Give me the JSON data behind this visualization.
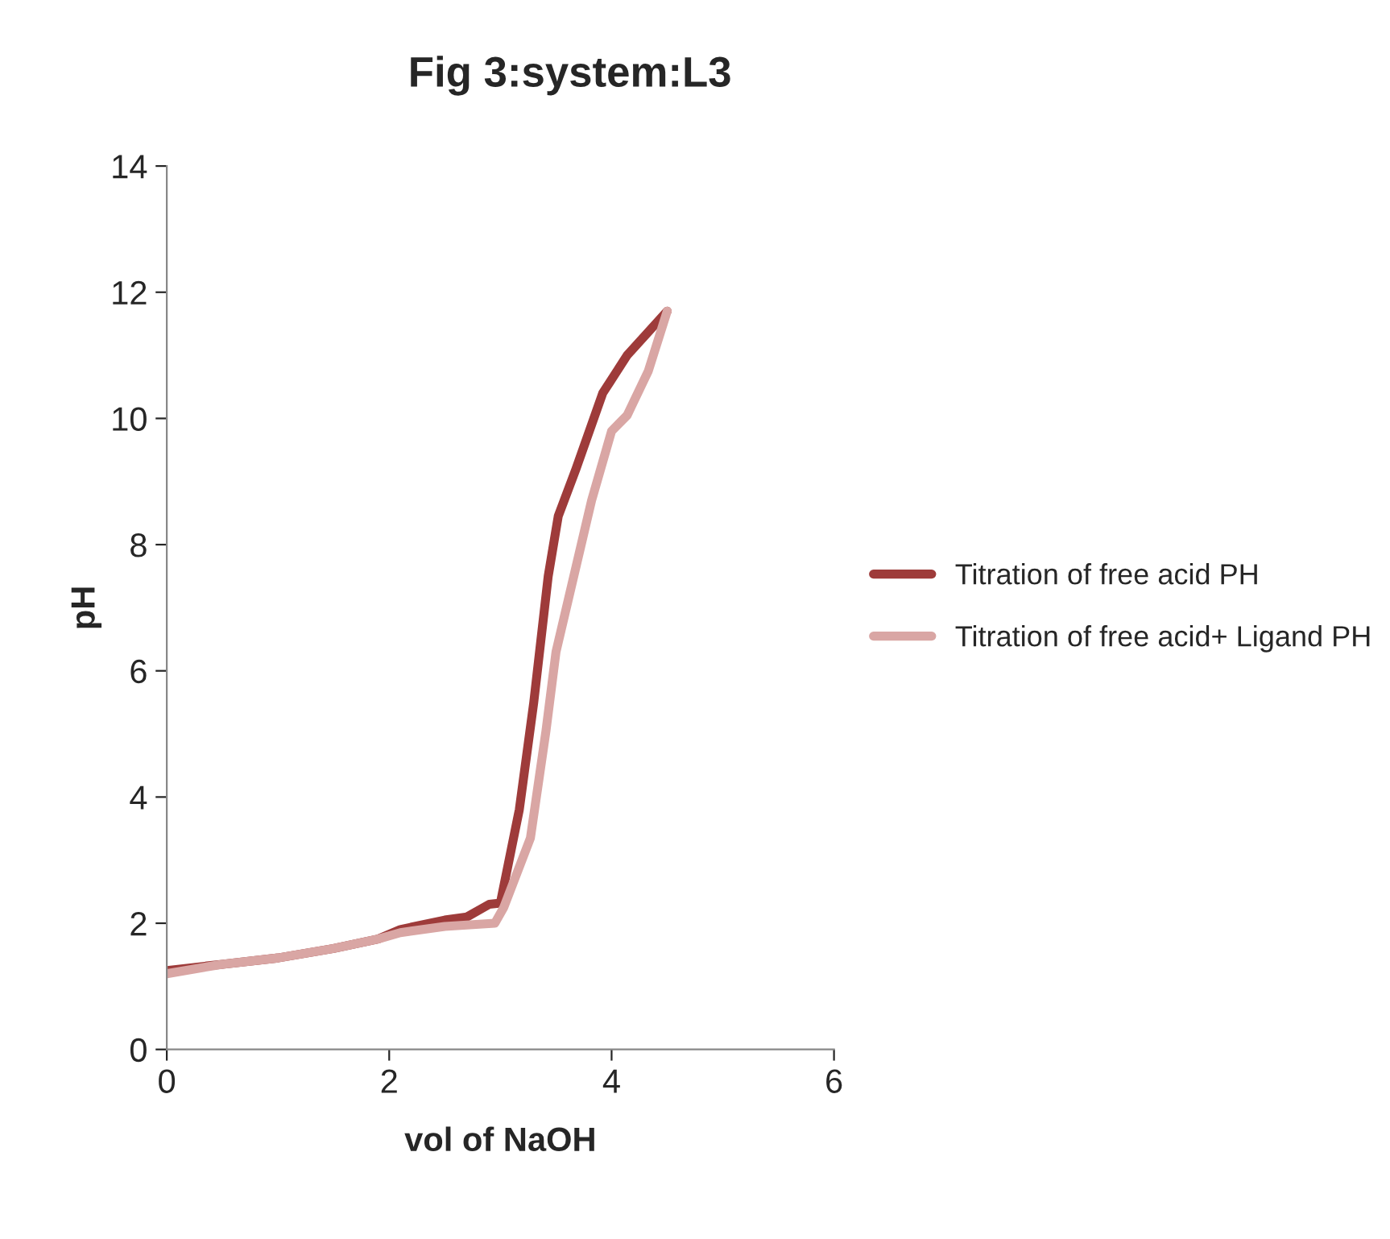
{
  "chart_data": {
    "type": "line",
    "title": "Fig 3:system:L3",
    "xlabel": "vol of NaOH",
    "ylabel": "pH",
    "xlim": [
      0,
      6
    ],
    "ylim": [
      0,
      14
    ],
    "xticks": [
      0,
      2,
      4,
      6
    ],
    "yticks": [
      0,
      2,
      4,
      6,
      8,
      10,
      12,
      14
    ],
    "grid": false,
    "legend": "right",
    "marker": "none",
    "line_style": "solid",
    "series": [
      {
        "name": "Titration of free acid PH",
        "color": "#9e3b3a",
        "x": [
          0,
          0.5,
          1.0,
          1.5,
          1.9,
          2.1,
          2.5,
          2.7,
          2.9,
          3.0,
          3.17,
          3.3,
          3.43,
          3.52,
          3.68,
          3.92,
          4.14,
          4.5
        ],
        "values": [
          1.25,
          1.35,
          1.45,
          1.6,
          1.75,
          1.9,
          2.05,
          2.1,
          2.3,
          2.32,
          3.8,
          5.5,
          7.5,
          8.45,
          9.2,
          10.4,
          11.0,
          11.7
        ]
      },
      {
        "name": "Titration of free acid+ Ligand PH",
        "color": "#d9a6a4",
        "x": [
          0,
          0.5,
          1.0,
          1.5,
          1.9,
          2.1,
          2.5,
          2.95,
          3.03,
          3.27,
          3.41,
          3.5,
          3.64,
          3.82,
          4.0,
          4.14,
          4.33,
          4.5
        ],
        "values": [
          1.2,
          1.35,
          1.45,
          1.6,
          1.75,
          1.85,
          1.95,
          2.0,
          2.25,
          3.35,
          5.05,
          6.3,
          7.35,
          8.7,
          9.8,
          10.05,
          10.75,
          11.7
        ]
      }
    ]
  }
}
